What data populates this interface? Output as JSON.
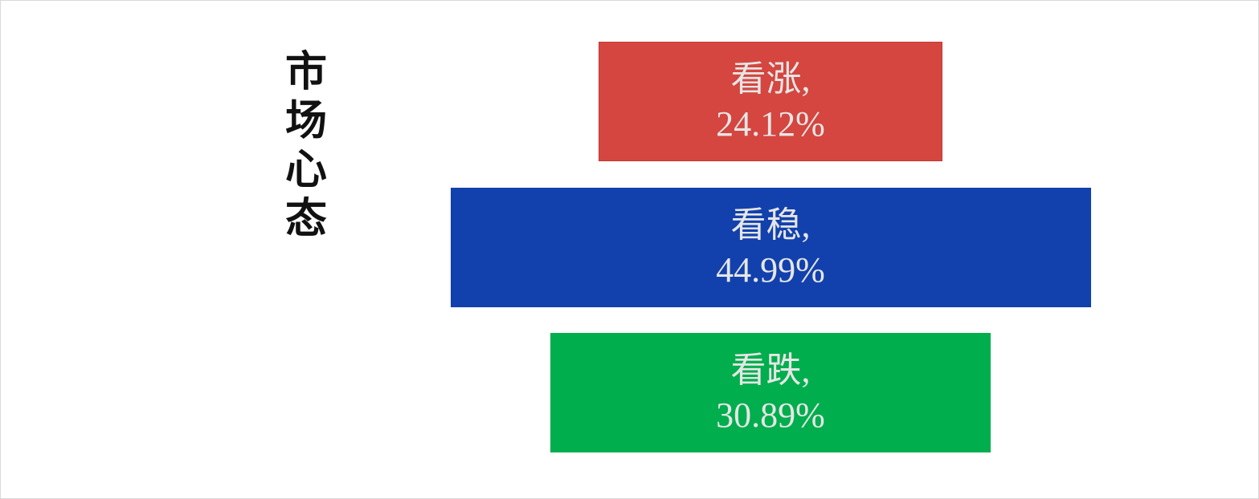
{
  "chart_data": {
    "type": "bar",
    "orientation": "horizontal-centered",
    "title": "市场心态",
    "categories": [
      "看涨",
      "看稳",
      "看跌"
    ],
    "values": [
      24.12,
      44.99,
      30.89
    ],
    "labels": [
      [
        "看涨,",
        "24.12%"
      ],
      [
        "看稳,",
        "44.99%"
      ],
      [
        "看跌,",
        "30.89%"
      ]
    ],
    "colors": [
      "#d4463f",
      "#1241ad",
      "#00ae4d"
    ],
    "unit": "%",
    "grid": false,
    "legend": "none"
  }
}
